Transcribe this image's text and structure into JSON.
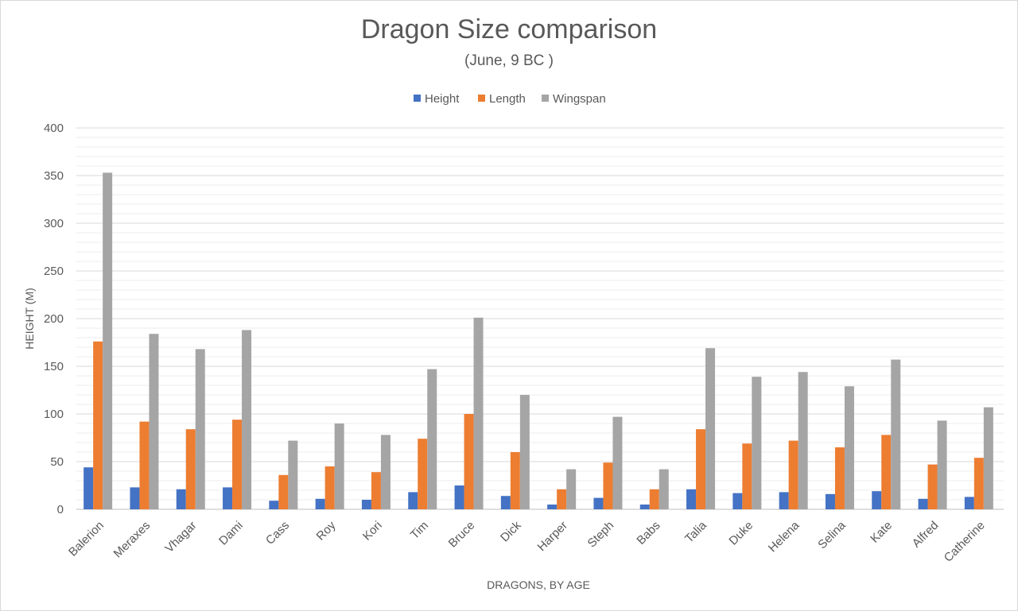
{
  "chart_data": {
    "type": "bar",
    "title": "Dragon Size comparison",
    "subtitle": "(June, 9 BC )",
    "xlabel": "DRAGONS, BY AGE",
    "ylabel": "HEIGHT (M)",
    "ylim": [
      0,
      400
    ],
    "yticks": [
      0,
      50,
      100,
      150,
      200,
      250,
      300,
      350,
      400
    ],
    "legend_position": "top-center",
    "grid": true,
    "categories": [
      "Balerion",
      "Meraxes",
      "Vhagar",
      "Dami",
      "Cass",
      "Roy",
      "Kori",
      "Tim",
      "Bruce",
      "Dick",
      "Harper",
      "Steph",
      "Babs",
      "Talia",
      "Duke",
      "Helena",
      "Selina",
      "Kate",
      "Alfred",
      "Catherine"
    ],
    "series": [
      {
        "name": "Height",
        "color": "#4472C4",
        "values": [
          44,
          23,
          21,
          23,
          9,
          11,
          10,
          18,
          25,
          14,
          5,
          12,
          5,
          21,
          17,
          18,
          16,
          19,
          11,
          13
        ]
      },
      {
        "name": "Length",
        "color": "#ED7D31",
        "values": [
          176,
          92,
          84,
          94,
          36,
          45,
          39,
          74,
          100,
          60,
          21,
          49,
          21,
          84,
          69,
          72,
          65,
          78,
          47,
          54
        ]
      },
      {
        "name": "Wingspan",
        "color": "#A5A5A5",
        "values": [
          353,
          184,
          168,
          188,
          72,
          90,
          78,
          147,
          201,
          120,
          42,
          97,
          42,
          169,
          139,
          144,
          129,
          157,
          93,
          107
        ]
      }
    ]
  }
}
